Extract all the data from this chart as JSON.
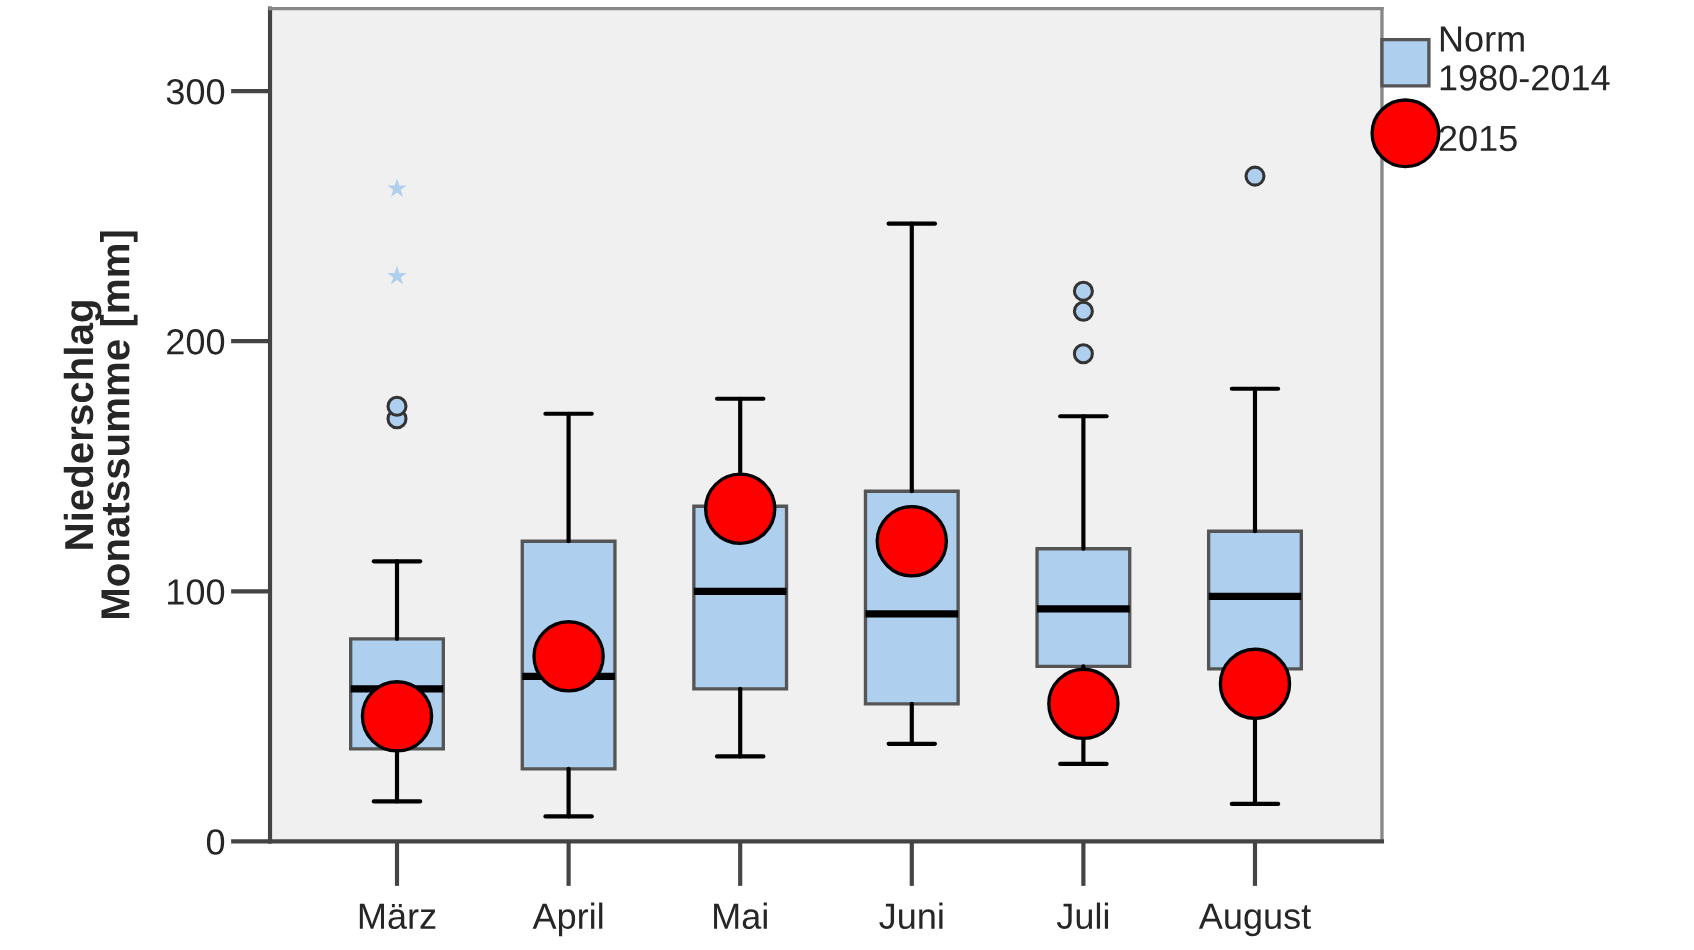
{
  "chart_data": {
    "type": "box",
    "ylabel": "Niederschlag\nMonatssumme [mm]",
    "categories": [
      "März",
      "April",
      "Mai",
      "Juni",
      "Juli",
      "August"
    ],
    "ylim": [
      0,
      333
    ],
    "yticks": [
      0,
      100,
      200,
      300
    ],
    "legend": "top right",
    "series": [
      {
        "name": "Norm\n1980-2014",
        "color": "#aecfee",
        "boxes": [
          {
            "low": 16,
            "q1": 37,
            "median": 61,
            "q3": 81,
            "high": 112,
            "outliers": [
              169,
              174,
              226,
              261
            ]
          },
          {
            "low": 10,
            "q1": 29,
            "median": 66,
            "q3": 120,
            "high": 171
          },
          {
            "low": 34,
            "q1": 61,
            "median": 100,
            "q3": 134,
            "high": 177
          },
          {
            "low": 39,
            "q1": 55,
            "median": 91,
            "q3": 140,
            "high": 247
          },
          {
            "low": 31,
            "q1": 70,
            "median": 93,
            "q3": 117,
            "high": 170,
            "outliers": [
              195,
              212,
              220
            ]
          },
          {
            "low": 15,
            "q1": 69,
            "median": 98,
            "q3": 124,
            "high": 181,
            "outliers": [
              266
            ]
          }
        ]
      },
      {
        "name": "2015",
        "type": "scatter",
        "color": "#ff0000",
        "marker": "circle",
        "x": [
          "März",
          "April",
          "Mai",
          "Juni",
          "Juli",
          "August"
        ],
        "values": [
          50,
          74,
          133,
          120,
          55,
          63
        ]
      }
    ]
  }
}
